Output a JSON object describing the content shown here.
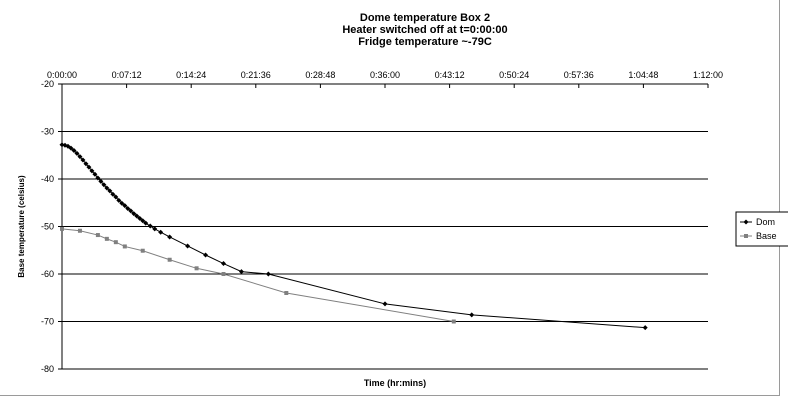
{
  "chart_data": {
    "type": "line",
    "title_lines": [
      "Dome temperature Box 2",
      "Heater switched off at t=0:00:00",
      "Fridge temperature ~-79C"
    ],
    "xlabel": "Time (hr:mins)",
    "ylabel": "Base temperature (celsius)",
    "xlim_seconds": [
      0,
      4320
    ],
    "xticks": [
      "0:00:00",
      "0:07:12",
      "0:14:24",
      "0:21:36",
      "0:28:48",
      "0:36:00",
      "0:43:12",
      "0:50:24",
      "0:57:36",
      "1:04:48",
      "1:12:00"
    ],
    "ylim": [
      -80,
      -20
    ],
    "yticks": [
      -20,
      -30,
      -40,
      -50,
      -60,
      -70,
      -80
    ],
    "x_axis_position": "top",
    "grid": "horizontal",
    "legend_position": "right",
    "series": [
      {
        "name": "Dom",
        "marker": "diamond",
        "color": "#000000",
        "x_seconds": [
          0,
          20,
          40,
          60,
          80,
          100,
          120,
          140,
          160,
          180,
          200,
          220,
          240,
          260,
          280,
          300,
          320,
          340,
          360,
          380,
          400,
          420,
          440,
          460,
          480,
          500,
          520,
          540,
          560,
          590,
          620,
          660,
          720,
          840,
          960,
          1080,
          1200,
          1380,
          2160,
          2740,
          3900
        ],
        "y": [
          -32.8,
          -32.9,
          -33.1,
          -33.5,
          -34.0,
          -34.6,
          -35.3,
          -36.0,
          -36.8,
          -37.5,
          -38.3,
          -39.0,
          -39.8,
          -40.5,
          -41.2,
          -41.9,
          -42.5,
          -43.2,
          -43.8,
          -44.5,
          -45.1,
          -45.6,
          -46.2,
          -46.7,
          -47.3,
          -47.8,
          -48.3,
          -48.8,
          -49.3,
          -49.9,
          -50.5,
          -51.2,
          -52.2,
          -54.1,
          -56.0,
          -57.8,
          -59.5,
          -60.0,
          -66.3,
          -68.6,
          -71.3
        ]
      },
      {
        "name": "Base",
        "marker": "square",
        "color": "#808080",
        "x_seconds": [
          0,
          120,
          240,
          300,
          360,
          420,
          540,
          720,
          900,
          1080,
          1500,
          2620
        ],
        "y": [
          -50.5,
          -50.9,
          -51.8,
          -52.6,
          -53.3,
          -54.2,
          -55.1,
          -57.0,
          -58.8,
          -60.0,
          -64.0,
          -70.0
        ]
      }
    ]
  }
}
